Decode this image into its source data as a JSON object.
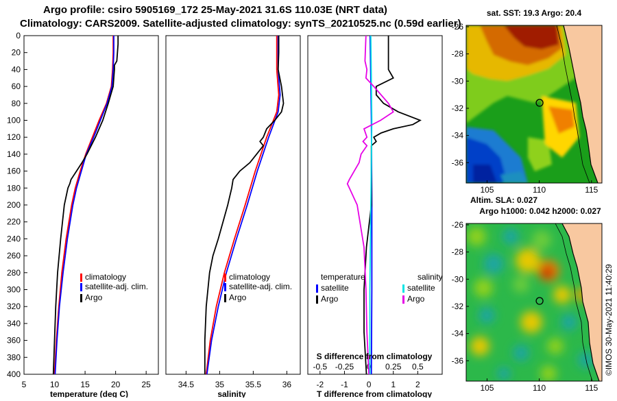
{
  "titles": {
    "line1": "Argo profile: csiro 5905169_172 25-May-2021 31.6S 110.03E (NRT data)",
    "line2": "Climatology: CARS2009. Satellite-adjusted climatology: synTS_20210525.nc (0.59d earlier)"
  },
  "colors": {
    "climatology": "#ff0000",
    "satellite": "#0000ff",
    "argo": "#000000",
    "sat_diff": "#00e5e5",
    "sal_diff": "#e600e6",
    "land": "#f8c8a0"
  },
  "chart_data": [
    {
      "type": "line",
      "name": "temperature",
      "xlabel": "temperature (deg C)",
      "ylabel": "",
      "xlim": [
        5,
        27
      ],
      "ylim": [
        0,
        400
      ],
      "xticks": [
        5,
        10,
        15,
        20,
        25
      ],
      "yticks": [
        0,
        20,
        40,
        60,
        80,
        100,
        120,
        140,
        160,
        180,
        200,
        220,
        240,
        260,
        280,
        300,
        320,
        340,
        360,
        380,
        400
      ],
      "legend": [
        "climatology",
        "satellite-adj. clim.",
        "Argo"
      ],
      "series": [
        {
          "name": "climatology",
          "depth": [
            0,
            20,
            40,
            60,
            80,
            100,
            120,
            140,
            160,
            180,
            200,
            240,
            280,
            320,
            360,
            400
          ],
          "values": [
            19.6,
            19.6,
            19.5,
            19.3,
            18.5,
            17.3,
            16.2,
            15.1,
            14.2,
            13.4,
            12.8,
            11.9,
            11.2,
            10.7,
            10.3,
            10.0
          ]
        },
        {
          "name": "satellite-adj. clim.",
          "depth": [
            0,
            20,
            40,
            60,
            80,
            100,
            120,
            140,
            160,
            180,
            200,
            240,
            280,
            320,
            360,
            400
          ],
          "values": [
            19.7,
            19.7,
            19.6,
            19.4,
            18.6,
            17.5,
            16.4,
            15.2,
            14.4,
            13.6,
            13.0,
            12.1,
            11.4,
            10.8,
            10.4,
            10.1
          ]
        },
        {
          "name": "Argo",
          "depth": [
            0,
            10,
            30,
            35,
            40,
            60,
            70,
            80,
            100,
            120,
            140,
            150,
            160,
            170,
            175,
            180,
            200,
            240,
            280,
            320,
            360,
            400
          ],
          "values": [
            20.4,
            20.4,
            20.2,
            19.8,
            19.8,
            19.6,
            19.2,
            18.8,
            17.9,
            16.7,
            15.3,
            14.5,
            13.6,
            12.7,
            12.5,
            12.2,
            11.6,
            11.0,
            10.5,
            10.2,
            10.0,
            9.8
          ]
        }
      ]
    },
    {
      "type": "line",
      "name": "salinity",
      "xlabel": "salinity",
      "xlim": [
        34.2,
        36.2
      ],
      "ylim": [
        0,
        400
      ],
      "xticks": [
        34.5,
        35,
        35.5,
        36
      ],
      "legend": [
        "climatology",
        "satellite-adj. clim.",
        "Argo"
      ],
      "series": [
        {
          "name": "climatology",
          "depth": [
            0,
            40,
            70,
            90,
            120,
            160,
            200,
            240,
            280,
            320,
            360,
            400
          ],
          "values": [
            35.85,
            35.85,
            35.88,
            35.85,
            35.7,
            35.53,
            35.38,
            35.22,
            35.07,
            34.95,
            34.86,
            34.8
          ]
        },
        {
          "name": "satellite-adj. clim.",
          "depth": [
            0,
            40,
            70,
            90,
            120,
            160,
            200,
            240,
            280,
            320,
            360,
            400
          ],
          "values": [
            35.87,
            35.87,
            35.9,
            35.87,
            35.73,
            35.56,
            35.41,
            35.25,
            35.1,
            34.98,
            34.88,
            34.81
          ]
        },
        {
          "name": "Argo",
          "depth": [
            0,
            20,
            40,
            60,
            80,
            90,
            100,
            110,
            120,
            125,
            130,
            140,
            150,
            160,
            170,
            180,
            190,
            200,
            220,
            240,
            260,
            280,
            320,
            360,
            400
          ],
          "values": [
            35.88,
            35.88,
            35.87,
            35.92,
            35.95,
            35.92,
            35.82,
            35.7,
            35.65,
            35.6,
            35.65,
            35.55,
            35.45,
            35.3,
            35.2,
            35.18,
            35.15,
            35.12,
            35.05,
            34.98,
            34.9,
            34.85,
            34.8,
            34.78,
            34.78
          ]
        }
      ]
    },
    {
      "type": "line",
      "name": "difference",
      "xlabel": "T difference from climatology",
      "top_label": "S difference from climatology",
      "xlim": [
        -2.5,
        3.0
      ],
      "top_xlim": [
        -0.625,
        0.75
      ],
      "ylim": [
        0,
        400
      ],
      "xticks": [
        -2,
        -1,
        0,
        1,
        2
      ],
      "top_ticks": [
        "-0.5",
        "-0.25",
        "0",
        "0.25",
        "0.5"
      ],
      "legend_heads": [
        "temperature",
        "salinity"
      ],
      "legend_left": [
        "satellite",
        "Argo"
      ],
      "legend_right": [
        "satellite",
        "Argo"
      ],
      "series": [
        {
          "name": "temperature satellite",
          "depth": [
            0,
            100,
            200,
            300,
            400
          ],
          "values": [
            0.05,
            0.1,
            0.12,
            0.12,
            0.1
          ]
        },
        {
          "name": "temperature Argo",
          "depth": [
            0,
            30,
            40,
            50,
            60,
            70,
            80,
            90,
            100,
            105,
            110,
            115,
            120,
            125,
            130,
            140,
            160,
            200,
            250,
            300,
            350,
            400
          ],
          "values": [
            0.8,
            0.8,
            0.8,
            1.0,
            0.3,
            0.3,
            0.6,
            1.2,
            2.1,
            1.8,
            1.0,
            0.5,
            0.2,
            0.3,
            0.1,
            0.1,
            0.1,
            0.1,
            -0.1,
            -0.2,
            -0.2,
            -0.1
          ]
        },
        {
          "name": "salinity satellite",
          "depth": [
            0,
            100,
            200,
            300,
            400
          ],
          "values": [
            0.02,
            0.03,
            0.02,
            0.01,
            0.01
          ]
        },
        {
          "name": "salinity Argo",
          "depth": [
            0,
            30,
            40,
            50,
            60,
            80,
            90,
            100,
            110,
            120,
            125,
            130,
            140,
            150,
            160,
            170,
            175,
            180,
            200,
            250,
            300,
            350,
            400
          ],
          "values": [
            -0.03,
            -0.04,
            -0.02,
            -0.03,
            0.05,
            0.2,
            0.25,
            0.12,
            -0.05,
            -0.02,
            -0.06,
            -0.02,
            -0.08,
            -0.1,
            -0.15,
            -0.2,
            -0.22,
            -0.2,
            -0.12,
            -0.05,
            -0.03,
            -0.02,
            0.0
          ]
        }
      ]
    },
    {
      "type": "heatmap",
      "name": "sst-map",
      "title": "sat. SST: 19.3 Argo: 20.4",
      "footer": "Altim. SLA: 0.027",
      "xticks": [
        105,
        110,
        115
      ],
      "yticks": [
        -26,
        -28,
        -30,
        -32,
        -34,
        -36
      ],
      "xlim": [
        103,
        116
      ],
      "ylim": [
        -37.5,
        -25.9
      ],
      "profile_location": {
        "lon": 110.03,
        "lat": -31.6
      }
    },
    {
      "type": "heatmap",
      "name": "sla-map",
      "title": "Argo h1000: 0.042 h2000: 0.027",
      "xticks": [
        105,
        110,
        115
      ],
      "yticks": [
        -26,
        -28,
        -30,
        -32,
        -34,
        -36
      ],
      "xlim": [
        103,
        116
      ],
      "ylim": [
        -37.5,
        -25.9
      ],
      "profile_location": {
        "lon": 110.03,
        "lat": -31.6
      }
    }
  ],
  "credit": "©IMOS 30-May-2021 11:40:29"
}
